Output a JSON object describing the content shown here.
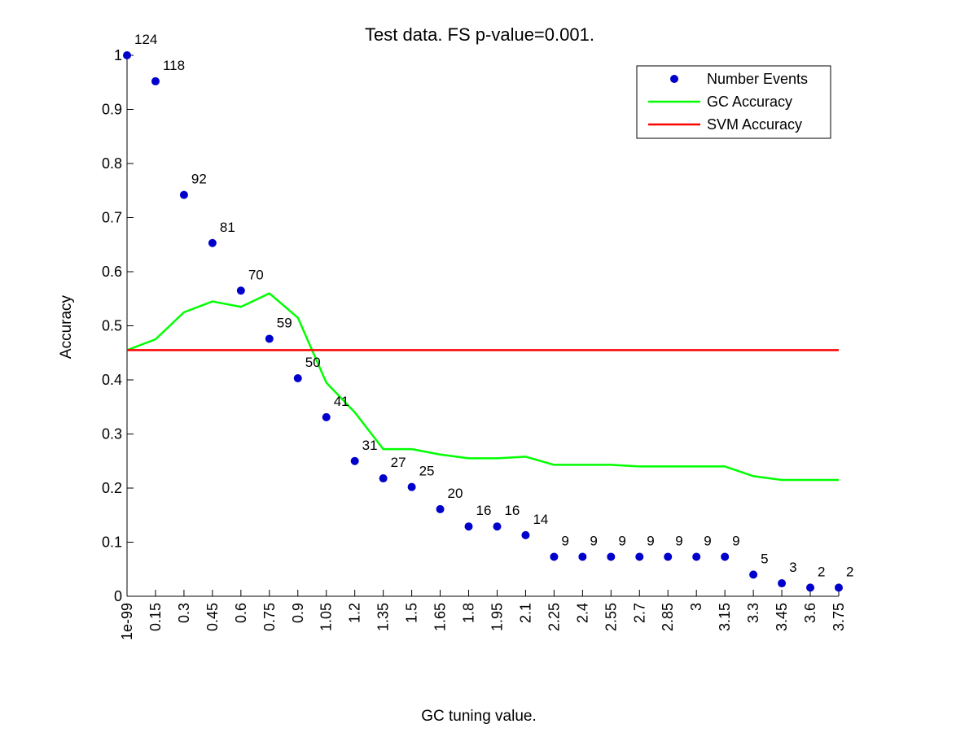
{
  "chart_data": {
    "type": "scatter",
    "title": "Test data. FS p-value=0.001.",
    "xlabel": "GC tuning value.",
    "ylabel": "Accuracy",
    "ylim": [
      0,
      1
    ],
    "grid": false,
    "legend_position": "top-right",
    "categories": [
      "1e-99",
      "0.15",
      "0.3",
      "0.45",
      "0.6",
      "0.75",
      "0.9",
      "1.05",
      "1.2",
      "1.35",
      "1.5",
      "1.65",
      "1.8",
      "1.95",
      "2.1",
      "2.25",
      "2.4",
      "2.55",
      "2.7",
      "2.85",
      "3",
      "3.15",
      "3.3",
      "3.45",
      "3.6",
      "3.75"
    ],
    "yticks": [
      0,
      0.1,
      0.2,
      0.3,
      0.4,
      0.5,
      0.6,
      0.7,
      0.8,
      0.9,
      1
    ],
    "ytick_labels": [
      "0",
      "0.1",
      "0.2",
      "0.3",
      "0.4",
      "0.5",
      "0.6",
      "0.7",
      "0.8",
      "0.9",
      "1"
    ],
    "series": [
      {
        "name": "Number Events",
        "kind": "markers",
        "color": "#0000cc",
        "values": [
          1.0,
          0.952,
          0.742,
          0.653,
          0.565,
          0.476,
          0.403,
          0.331,
          0.25,
          0.218,
          0.202,
          0.161,
          0.129,
          0.129,
          0.113,
          0.073,
          0.073,
          0.073,
          0.073,
          0.073,
          0.073,
          0.073,
          0.04,
          0.024,
          0.016,
          0.016
        ],
        "labels": [
          "124",
          "118",
          "92",
          "81",
          "70",
          "59",
          "50",
          "41",
          "31",
          "27",
          "25",
          "20",
          "16",
          "16",
          "14",
          "9",
          "9",
          "9",
          "9",
          "9",
          "9",
          "9",
          "5",
          "3",
          "2",
          "2"
        ]
      },
      {
        "name": "GC Accuracy",
        "kind": "line",
        "color": "#00ff00",
        "values": [
          0.455,
          0.475,
          0.525,
          0.545,
          0.535,
          0.56,
          0.515,
          0.395,
          0.34,
          0.272,
          0.272,
          0.262,
          0.255,
          0.255,
          0.258,
          0.243,
          0.243,
          0.243,
          0.24,
          0.24,
          0.24,
          0.24,
          0.222,
          0.215,
          0.215,
          0.215
        ]
      },
      {
        "name": "SVM Accuracy",
        "kind": "line",
        "color": "#ff0000",
        "values": [
          0.455,
          0.455,
          0.455,
          0.455,
          0.455,
          0.455,
          0.455,
          0.455,
          0.455,
          0.455,
          0.455,
          0.455,
          0.455,
          0.455,
          0.455,
          0.455,
          0.455,
          0.455,
          0.455,
          0.455,
          0.455,
          0.455,
          0.455,
          0.455,
          0.455,
          0.455
        ]
      }
    ]
  }
}
